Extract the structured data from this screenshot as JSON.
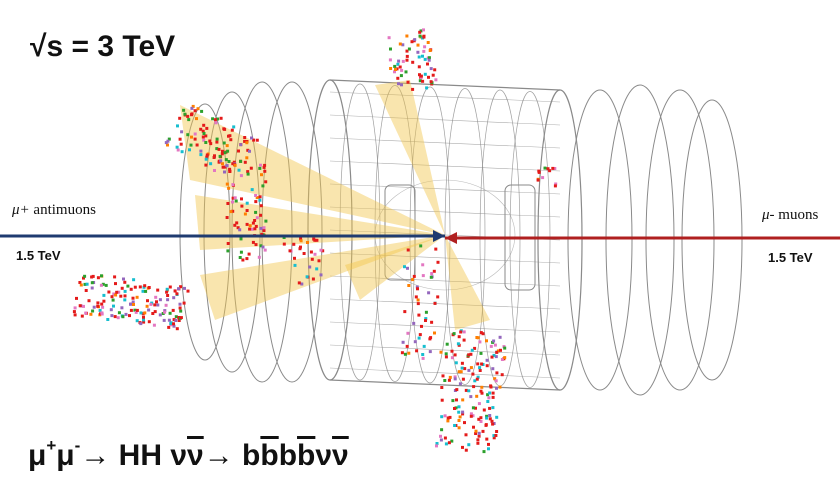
{
  "energy_label": "√s = 3 TeV",
  "left_beam": {
    "symbol": "μ+",
    "particle": "antimuons",
    "energy": "1.5 TeV",
    "color": "#1f3b70"
  },
  "right_beam": {
    "symbol": "μ-",
    "particle": "muons",
    "energy": "1.5 TeV",
    "color": "#b02020"
  },
  "process_tokens": [
    {
      "text": "μ",
      "style": "normal"
    },
    {
      "text": "+",
      "style": "sup"
    },
    {
      "text": "μ",
      "style": "normal"
    },
    {
      "text": "-",
      "style": "sup"
    },
    {
      "text": " → HH ν",
      "style": "normal"
    },
    {
      "text": "ν",
      "style": "bar"
    },
    {
      "text": " → b",
      "style": "normal"
    },
    {
      "text": "b",
      "style": "bar"
    },
    {
      "text": "b",
      "style": "normal"
    },
    {
      "text": "b",
      "style": "bar"
    },
    {
      "text": "ν",
      "style": "normal"
    },
    {
      "text": "ν",
      "style": "bar"
    }
  ],
  "colors": {
    "detector_lines": "#8a8a8a",
    "hits": "#e41a1a",
    "jet_cones": "#f2c64c",
    "background": "#ffffff"
  }
}
